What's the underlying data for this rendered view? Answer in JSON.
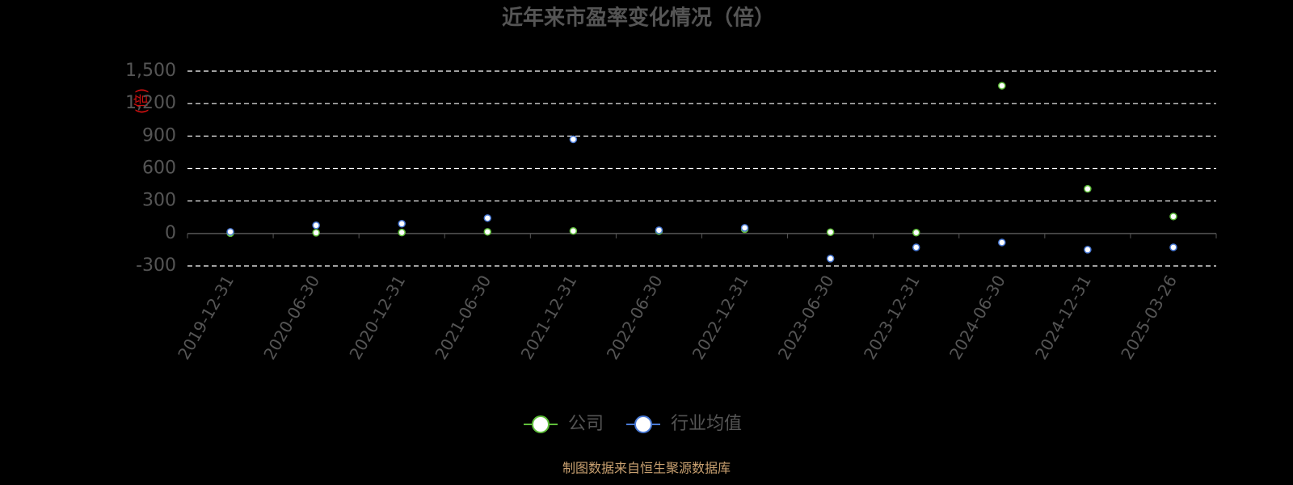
{
  "chart_data": {
    "type": "line",
    "title": "近年来市盈率变化情况（倍）",
    "y_label": "(倍)",
    "categories": [
      "2019-12-31",
      "2020-06-30",
      "2020-12-31",
      "2021-06-30",
      "2021-12-31",
      "2022-06-30",
      "2022-12-31",
      "2023-06-30",
      "2023-12-31",
      "2024-06-30",
      "2024-12-31",
      "2025-03-26"
    ],
    "series": [
      {
        "name": "公司",
        "color": "#5fbf3a",
        "values": [
          3,
          7,
          9,
          15,
          23,
          22,
          40,
          12,
          8,
          1365,
          412,
          157
        ]
      },
      {
        "name": "行业均值",
        "color": "#4a7ad6",
        "values": [
          15,
          75,
          90,
          142,
          870,
          30,
          52,
          -232,
          -128,
          -83,
          -150,
          -128
        ]
      }
    ],
    "ylim": [
      -300,
      1500
    ],
    "yticks": [
      -300,
      0,
      300,
      600,
      900,
      {
        "value": 1200,
        "label": "1,200"
      },
      {
        "value": 1500,
        "label": "1,500"
      }
    ],
    "grid": true,
    "source": "制图数据来自恒生聚源数据库"
  }
}
